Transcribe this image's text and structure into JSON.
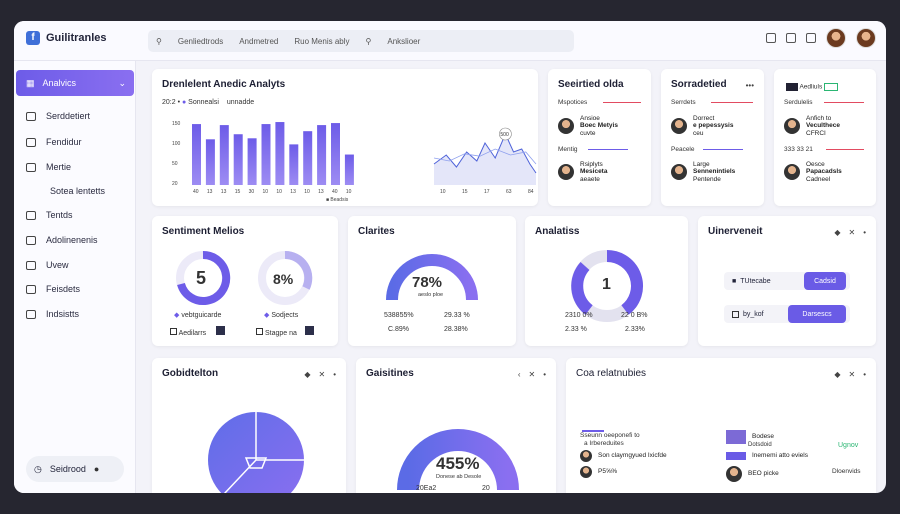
{
  "app": {
    "title": "Guilitranles"
  },
  "search": {
    "items": [
      "Genliedtrods",
      "Andmetred",
      "Ruo Menis ably",
      "Ankslioer"
    ]
  },
  "sidebar": {
    "active": "Analvics",
    "items": [
      "Serddetiert",
      "Fendidur",
      "Mertie",
      "Sotea lentetts",
      "Tentds",
      "Adolinenenis",
      "Uvew",
      "Feisdets",
      "Indsistts"
    ],
    "bottom": "Seidrood"
  },
  "main_chart": {
    "title": "Drenlelent Anedic Analyts",
    "legend_a": "20:2 •",
    "legend_b": "Sonnealsi",
    "legend_c": "unnadde",
    "legend_d": "Beadsis",
    "callout": "500",
    "chart_data": {
      "type": "bar",
      "title": "Drenlelent Anedic Analyts",
      "yticks": [
        "150",
        "100",
        "50",
        "20"
      ],
      "categories": [
        "40",
        "13",
        "13",
        "15",
        "30",
        "10",
        "10",
        "13",
        "10",
        "13",
        "40",
        "10"
      ],
      "values": [
        120,
        90,
        118,
        100,
        92,
        120,
        124,
        80,
        106,
        118,
        122,
        60
      ],
      "line_xticks": [
        "10",
        "15",
        "17",
        "63",
        "84"
      ]
    }
  },
  "persons1": {
    "title": "Seeirtied olda",
    "header": "Mspotices",
    "p1_name": "Ansioe",
    "p1_line2": "Boec Metyis",
    "p1_line3": "cuvte",
    "mid": "Mentig",
    "p2_name": "Rsiplyts",
    "p2_line2": "Mesiceta",
    "p2_line3": "aeaete"
  },
  "persons2": {
    "title": "Sorradetied",
    "header": "Serrdets",
    "p1_name": "Dorrect",
    "p1_line2": "e pepessysis",
    "p1_line3": "ceu",
    "mid": "Peacele",
    "p2_name": "Large",
    "p2_line2": "Sennenintiels",
    "p2_line3": "Pentende"
  },
  "persons3": {
    "title": "",
    "header": "Aedliuls",
    "header2": "Serdulelis",
    "p1_name": "Anfich to",
    "p1_line2": "Veculthece",
    "p1_line3": "CFRCI",
    "mid": "333 33 21",
    "p2_name": "Oesce",
    "p2_line2": "Papacadsls",
    "p2_line3": "Cadneel"
  },
  "sentiment": {
    "title": "Sentiment Melios",
    "gauge1": "5",
    "gauge2": "8%",
    "label1": "vebtguicarde",
    "label2": "Sodjects",
    "label3": "Aedilarrs",
    "label4": "Stagpe na"
  },
  "clarites": {
    "title": "Clarites",
    "value": "78%",
    "sub": "aeslo ploe",
    "r1a": "538855%",
    "r1b": "29.33 %",
    "r2a": "C.89%",
    "r2b": "28.38%"
  },
  "analatiss": {
    "title": "Analatiss",
    "value": "1",
    "r1a": "2310 0%",
    "r1b": "22 0 B%",
    "r2a": "2.33 %",
    "r2b": "2.33%"
  },
  "uinerveneit": {
    "title": "Uinerveneit",
    "row1": "TUtecabe",
    "row1_pill": "Cadsid",
    "row2": "by_kof",
    "row2_pill": "Darsescs"
  },
  "gobidletion": {
    "title": "Gobidtelton"
  },
  "gaisitines": {
    "title": "Gaisitines",
    "value": "455%",
    "sub": "Donese ab Desole",
    "left": "20Ea2",
    "right": "20"
  },
  "coa": {
    "title": "Coa relatnubies",
    "l1": "Sseunn oeeponefi to",
    "l2": "a Irbereduites",
    "l3": "Son claymgyued Ixicfde",
    "l4": "P5⅝%",
    "m1": "Bodese",
    "m2": "Dotsdoid",
    "m3": "Inememi atto eviels",
    "m4": "BEO picke",
    "r1": "Ugnov",
    "r2": "Dloenvids"
  },
  "colors": {
    "accent": "#6d5ce8",
    "accent2": "#8a6ff0",
    "alert": "#e24b61"
  }
}
